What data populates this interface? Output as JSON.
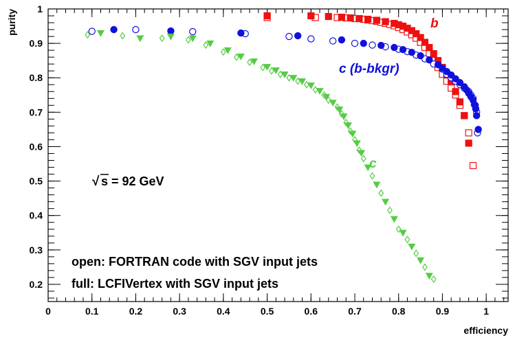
{
  "chart_data": {
    "type": "scatter",
    "xlabel": "efficiency",
    "ylabel": "purity",
    "xlim": [
      0,
      1.05
    ],
    "ylim": [
      0.15,
      1.0
    ],
    "x_ticks": [
      "0",
      "0.1",
      "0.2",
      "0.3",
      "0.4",
      "0.5",
      "0.6",
      "0.7",
      "0.8",
      "0.9",
      "1"
    ],
    "y_ticks": [
      "0.2",
      "0.3",
      "0.4",
      "0.5",
      "0.6",
      "0.7",
      "0.8",
      "0.9",
      "1"
    ],
    "grid": false,
    "series": [
      {
        "name": "b",
        "color": "#ee1111",
        "marker": "square",
        "open": [
          [
            0.5,
            0.975
          ],
          [
            0.61,
            0.975
          ],
          [
            0.66,
            0.975
          ],
          [
            0.68,
            0.974
          ],
          [
            0.7,
            0.972
          ],
          [
            0.72,
            0.97
          ],
          [
            0.73,
            0.968
          ],
          [
            0.74,
            0.966
          ],
          [
            0.75,
            0.964
          ],
          [
            0.76,
            0.961
          ],
          [
            0.77,
            0.958
          ],
          [
            0.78,
            0.955
          ],
          [
            0.79,
            0.951
          ],
          [
            0.8,
            0.946
          ],
          [
            0.81,
            0.94
          ],
          [
            0.82,
            0.933
          ],
          [
            0.83,
            0.925
          ],
          [
            0.84,
            0.915
          ],
          [
            0.85,
            0.903
          ],
          [
            0.86,
            0.888
          ],
          [
            0.87,
            0.87
          ],
          [
            0.88,
            0.85
          ],
          [
            0.89,
            0.83
          ],
          [
            0.9,
            0.81
          ],
          [
            0.91,
            0.79
          ],
          [
            0.92,
            0.77
          ],
          [
            0.93,
            0.75
          ],
          [
            0.94,
            0.72
          ],
          [
            0.95,
            0.69
          ],
          [
            0.96,
            0.64
          ],
          [
            0.97,
            0.545
          ]
        ],
        "full": [
          [
            0.5,
            0.98
          ],
          [
            0.6,
            0.98
          ],
          [
            0.64,
            0.978
          ],
          [
            0.67,
            0.976
          ],
          [
            0.69,
            0.974
          ],
          [
            0.71,
            0.972
          ],
          [
            0.73,
            0.97
          ],
          [
            0.75,
            0.967
          ],
          [
            0.77,
            0.963
          ],
          [
            0.79,
            0.958
          ],
          [
            0.8,
            0.954
          ],
          [
            0.81,
            0.95
          ],
          [
            0.82,
            0.944
          ],
          [
            0.83,
            0.937
          ],
          [
            0.84,
            0.928
          ],
          [
            0.85,
            0.917
          ],
          [
            0.86,
            0.903
          ],
          [
            0.87,
            0.888
          ],
          [
            0.88,
            0.87
          ],
          [
            0.89,
            0.85
          ],
          [
            0.9,
            0.83
          ],
          [
            0.91,
            0.81
          ],
          [
            0.92,
            0.79
          ],
          [
            0.93,
            0.76
          ],
          [
            0.94,
            0.73
          ],
          [
            0.95,
            0.69
          ],
          [
            0.96,
            0.61
          ]
        ]
      },
      {
        "name": "c (b-bkgr)",
        "color": "#1111dd",
        "marker": "circle",
        "open": [
          [
            0.1,
            0.935
          ],
          [
            0.2,
            0.94
          ],
          [
            0.33,
            0.934
          ],
          [
            0.45,
            0.928
          ],
          [
            0.55,
            0.92
          ],
          [
            0.6,
            0.913
          ],
          [
            0.65,
            0.907
          ],
          [
            0.7,
            0.9
          ],
          [
            0.74,
            0.895
          ],
          [
            0.77,
            0.89
          ],
          [
            0.8,
            0.883
          ],
          [
            0.82,
            0.876
          ],
          [
            0.84,
            0.866
          ],
          [
            0.86,
            0.855
          ],
          [
            0.88,
            0.84
          ],
          [
            0.9,
            0.825
          ],
          [
            0.91,
            0.81
          ],
          [
            0.92,
            0.8
          ],
          [
            0.93,
            0.79
          ],
          [
            0.94,
            0.78
          ],
          [
            0.95,
            0.77
          ],
          [
            0.96,
            0.76
          ],
          [
            0.965,
            0.75
          ],
          [
            0.97,
            0.74
          ],
          [
            0.975,
            0.72
          ],
          [
            0.978,
            0.7
          ],
          [
            0.98,
            0.64
          ]
        ],
        "full": [
          [
            0.15,
            0.94
          ],
          [
            0.28,
            0.936
          ],
          [
            0.44,
            0.93
          ],
          [
            0.57,
            0.922
          ],
          [
            0.67,
            0.91
          ],
          [
            0.72,
            0.9
          ],
          [
            0.76,
            0.894
          ],
          [
            0.79,
            0.888
          ],
          [
            0.81,
            0.882
          ],
          [
            0.83,
            0.874
          ],
          [
            0.85,
            0.864
          ],
          [
            0.87,
            0.852
          ],
          [
            0.89,
            0.838
          ],
          [
            0.9,
            0.828
          ],
          [
            0.91,
            0.818
          ],
          [
            0.92,
            0.808
          ],
          [
            0.93,
            0.797
          ],
          [
            0.94,
            0.786
          ],
          [
            0.95,
            0.774
          ],
          [
            0.955,
            0.765
          ],
          [
            0.96,
            0.755
          ],
          [
            0.965,
            0.745
          ],
          [
            0.97,
            0.735
          ],
          [
            0.973,
            0.722
          ],
          [
            0.976,
            0.71
          ],
          [
            0.978,
            0.69
          ],
          [
            0.982,
            0.65
          ]
        ]
      },
      {
        "name": "c",
        "color": "#55cc44",
        "marker": "triangle/diamond",
        "open": [
          [
            0.09,
            0.925
          ],
          [
            0.17,
            0.922
          ],
          [
            0.26,
            0.915
          ],
          [
            0.32,
            0.91
          ],
          [
            0.36,
            0.895
          ],
          [
            0.4,
            0.875
          ],
          [
            0.43,
            0.86
          ],
          [
            0.46,
            0.845
          ],
          [
            0.49,
            0.83
          ],
          [
            0.51,
            0.82
          ],
          [
            0.53,
            0.81
          ],
          [
            0.55,
            0.8
          ],
          [
            0.57,
            0.79
          ],
          [
            0.59,
            0.78
          ],
          [
            0.61,
            0.765
          ],
          [
            0.63,
            0.75
          ],
          [
            0.64,
            0.735
          ],
          [
            0.66,
            0.715
          ],
          [
            0.67,
            0.695
          ],
          [
            0.68,
            0.67
          ],
          [
            0.69,
            0.645
          ],
          [
            0.7,
            0.62
          ],
          [
            0.71,
            0.59
          ],
          [
            0.72,
            0.565
          ],
          [
            0.74,
            0.515
          ],
          [
            0.76,
            0.465
          ],
          [
            0.78,
            0.415
          ],
          [
            0.8,
            0.36
          ],
          [
            0.82,
            0.33
          ],
          [
            0.84,
            0.29
          ],
          [
            0.86,
            0.25
          ],
          [
            0.88,
            0.215
          ]
        ],
        "full": [
          [
            0.12,
            0.93
          ],
          [
            0.21,
            0.915
          ],
          [
            0.28,
            0.92
          ],
          [
            0.33,
            0.915
          ],
          [
            0.37,
            0.9
          ],
          [
            0.41,
            0.88
          ],
          [
            0.44,
            0.862
          ],
          [
            0.47,
            0.848
          ],
          [
            0.5,
            0.832
          ],
          [
            0.52,
            0.822
          ],
          [
            0.54,
            0.81
          ],
          [
            0.56,
            0.8
          ],
          [
            0.58,
            0.79
          ],
          [
            0.6,
            0.778
          ],
          [
            0.62,
            0.762
          ],
          [
            0.635,
            0.745
          ],
          [
            0.65,
            0.728
          ],
          [
            0.665,
            0.708
          ],
          [
            0.675,
            0.688
          ],
          [
            0.685,
            0.662
          ],
          [
            0.695,
            0.638
          ],
          [
            0.705,
            0.61
          ],
          [
            0.715,
            0.582
          ],
          [
            0.73,
            0.54
          ],
          [
            0.75,
            0.49
          ],
          [
            0.77,
            0.44
          ],
          [
            0.79,
            0.39
          ],
          [
            0.81,
            0.35
          ],
          [
            0.83,
            0.31
          ],
          [
            0.85,
            0.27
          ],
          [
            0.87,
            0.225
          ]
        ]
      }
    ],
    "annotations": {
      "sqrt_s_root": "√",
      "sqrt_s": "s = 92 GeV",
      "open_note": "open: FORTRAN code with SGV input jets",
      "full_note": "full: LCFIVertex with SGV input jets"
    }
  }
}
